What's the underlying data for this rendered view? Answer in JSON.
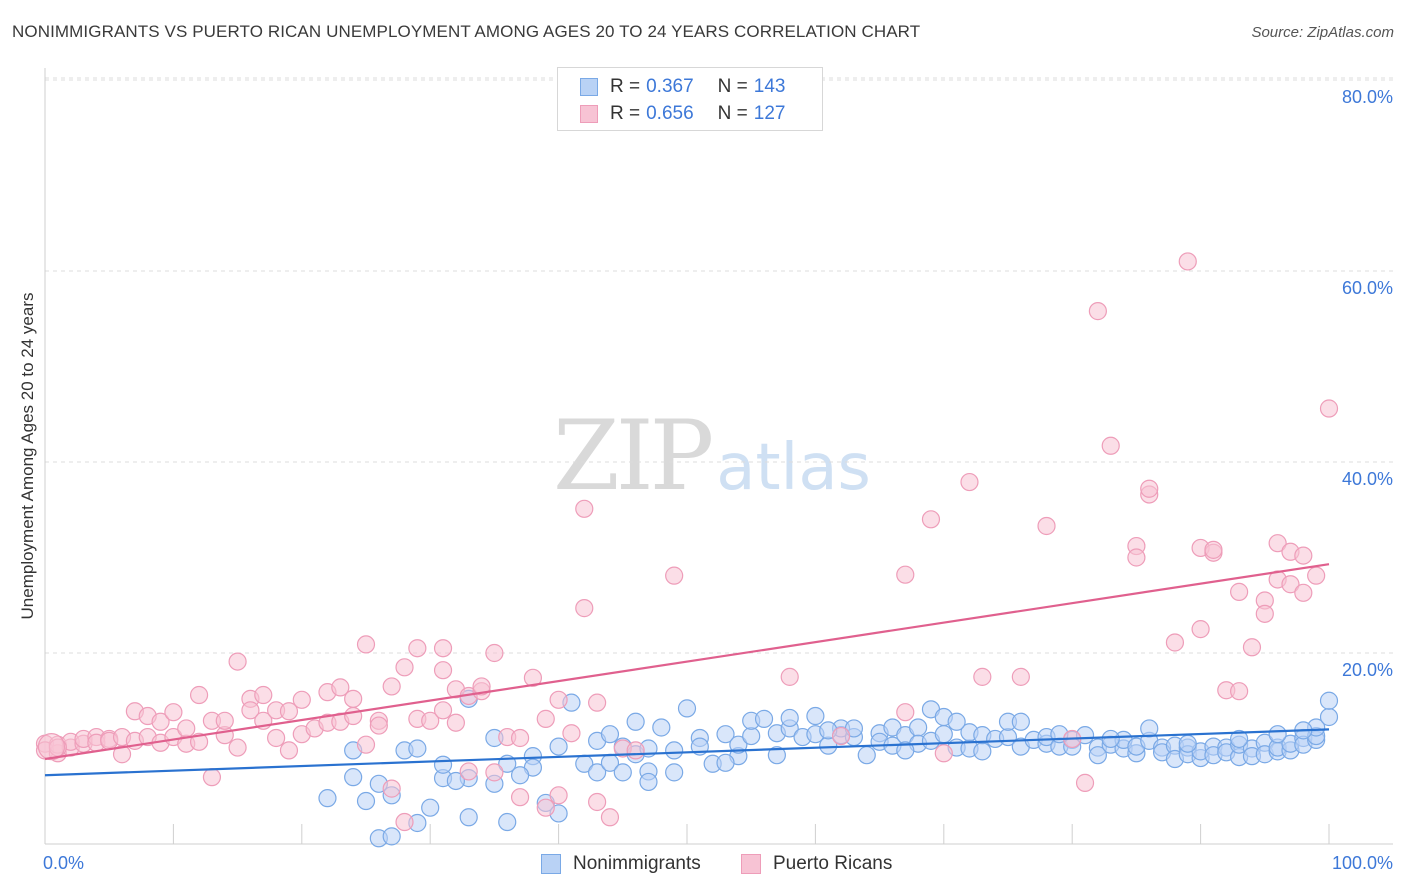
{
  "title": "NONIMMIGRANTS VS PUERTO RICAN UNEMPLOYMENT AMONG AGES 20 TO 24 YEARS CORRELATION CHART",
  "source": "Source: ZipAtlas.com",
  "watermark": {
    "zip": "ZIP",
    "atlas": "atlas"
  },
  "legend": {
    "r_label": "R =",
    "n_label": "N =",
    "rows": [
      {
        "name": "Nonimmigrants",
        "r": "0.367",
        "n": "143"
      },
      {
        "name": "Puerto Ricans",
        "r": "0.656",
        "n": "127"
      }
    ]
  },
  "colors": {
    "blue_fill": "#b9d2f5",
    "blue_stroke": "#7aa9e6",
    "blue_line": "#2a72d0",
    "pink_fill": "#f7c3d4",
    "pink_stroke": "#ee9db9",
    "pink_line": "#e0608e",
    "tick_label": "#3d78d8",
    "grid": "#dcdcdc"
  },
  "chart_data": {
    "type": "scatter",
    "title": "NONIMMIGRANTS VS PUERTO RICAN UNEMPLOYMENT AMONG AGES 20 TO 24 YEARS CORRELATION CHART",
    "xlabel": "",
    "ylabel": "Unemployment Among Ages 20 to 24 years",
    "xlim": [
      0,
      100
    ],
    "ylim": [
      0,
      80
    ],
    "x_tick_labels": [
      "0.0%",
      "100.0%"
    ],
    "y_ticks": [
      20,
      40,
      60,
      80
    ],
    "y_tick_labels": [
      "20.0%",
      "40.0%",
      "60.0%",
      "80.0%"
    ],
    "grid": "horizontal dashed",
    "legend_position": "top-center",
    "series": [
      {
        "name": "Nonimmigrants",
        "color": "#b9d2f5",
        "trend": {
          "x": [
            0,
            100
          ],
          "y": [
            7.2,
            12.0
          ]
        },
        "points": [
          [
            22,
            4.8
          ],
          [
            24,
            9.8
          ],
          [
            24,
            7.0
          ],
          [
            25,
            4.5
          ],
          [
            26,
            6.3
          ],
          [
            26,
            0.6
          ],
          [
            27,
            0.8
          ],
          [
            28,
            9.8
          ],
          [
            29,
            2.2
          ],
          [
            30,
            3.8
          ],
          [
            31,
            6.9
          ],
          [
            33,
            2.8
          ],
          [
            33,
            6.9
          ],
          [
            33,
            15.2
          ],
          [
            35,
            6.3
          ],
          [
            36,
            8.4
          ],
          [
            36,
            2.3
          ],
          [
            38,
            9.2
          ],
          [
            38,
            8.0
          ],
          [
            39,
            4.3
          ],
          [
            40,
            3.2
          ],
          [
            40,
            10.2
          ],
          [
            41,
            14.8
          ],
          [
            42,
            8.4
          ],
          [
            43,
            10.8
          ],
          [
            43,
            7.5
          ],
          [
            44,
            11.5
          ],
          [
            44,
            8.5
          ],
          [
            45,
            10.2
          ],
          [
            46,
            9.4
          ],
          [
            46,
            12.8
          ],
          [
            47,
            10.0
          ],
          [
            47,
            7.6
          ],
          [
            48,
            12.2
          ],
          [
            49,
            9.8
          ],
          [
            49,
            7.5
          ],
          [
            50,
            14.2
          ],
          [
            51,
            11.1
          ],
          [
            51,
            10.2
          ],
          [
            52,
            8.4
          ],
          [
            53,
            11.5
          ],
          [
            54,
            9.2
          ],
          [
            54,
            10.4
          ],
          [
            55,
            11.3
          ],
          [
            55,
            12.9
          ],
          [
            56,
            13.1
          ],
          [
            57,
            11.6
          ],
          [
            58,
            12.1
          ],
          [
            58,
            13.2
          ],
          [
            59,
            11.2
          ],
          [
            60,
            11.5
          ],
          [
            60,
            13.4
          ],
          [
            61,
            10.3
          ],
          [
            62,
            11.4
          ],
          [
            62,
            12.1
          ],
          [
            63,
            11.2
          ],
          [
            63,
            12.1
          ],
          [
            64,
            9.3
          ],
          [
            65,
            11.6
          ],
          [
            65,
            10.7
          ],
          [
            66,
            12.2
          ],
          [
            66,
            10.3
          ],
          [
            67,
            11.4
          ],
          [
            68,
            12.2
          ],
          [
            68,
            10.5
          ],
          [
            69,
            10.8
          ],
          [
            69,
            14.1
          ],
          [
            70,
            11.5
          ],
          [
            70,
            13.3
          ],
          [
            71,
            10.1
          ],
          [
            72,
            10.0
          ],
          [
            72,
            11.7
          ],
          [
            73,
            9.7
          ],
          [
            73,
            11.4
          ],
          [
            74,
            11.0
          ],
          [
            75,
            11.2
          ],
          [
            75,
            12.8
          ],
          [
            76,
            10.2
          ],
          [
            76,
            12.8
          ],
          [
            77,
            10.9
          ],
          [
            78,
            10.5
          ],
          [
            78,
            11.2
          ],
          [
            79,
            10.2
          ],
          [
            80,
            10.9
          ],
          [
            80,
            10.2
          ],
          [
            81,
            11.4
          ],
          [
            82,
            10.1
          ],
          [
            82,
            9.3
          ],
          [
            83,
            10.4
          ],
          [
            84,
            10.0
          ],
          [
            84,
            10.9
          ],
          [
            85,
            9.5
          ],
          [
            85,
            10.2
          ],
          [
            86,
            10.8
          ],
          [
            86,
            12.1
          ],
          [
            87,
            10.1
          ],
          [
            87,
            9.6
          ],
          [
            88,
            10.3
          ],
          [
            88,
            8.9
          ],
          [
            89,
            10.1
          ],
          [
            89,
            9.4
          ],
          [
            90,
            9.0
          ],
          [
            90,
            9.7
          ],
          [
            91,
            10.2
          ],
          [
            91,
            9.3
          ],
          [
            92,
            10.1
          ],
          [
            92,
            9.6
          ],
          [
            93,
            9.1
          ],
          [
            93,
            10.4
          ],
          [
            94,
            10.0
          ],
          [
            94,
            9.2
          ],
          [
            95,
            10.6
          ],
          [
            95,
            9.4
          ],
          [
            96,
            9.7
          ],
          [
            96,
            10.1
          ],
          [
            97,
            9.8
          ],
          [
            97,
            10.5
          ],
          [
            98,
            11.1
          ],
          [
            98,
            10.4
          ],
          [
            99,
            10.9
          ],
          [
            99,
            11.3
          ],
          [
            99,
            12.2
          ],
          [
            100,
            13.3
          ],
          [
            100,
            15.0
          ],
          [
            47,
            6.5
          ],
          [
            37,
            7.2
          ],
          [
            32,
            6.6
          ],
          [
            31,
            8.3
          ],
          [
            27,
            5.1
          ],
          [
            29,
            10.0
          ],
          [
            35,
            11.1
          ],
          [
            45,
            7.5
          ],
          [
            53,
            8.5
          ],
          [
            57,
            9.3
          ],
          [
            61,
            11.9
          ],
          [
            67,
            9.8
          ],
          [
            71,
            12.8
          ],
          [
            79,
            11.5
          ],
          [
            83,
            11.0
          ],
          [
            89,
            10.5
          ],
          [
            93,
            11.0
          ],
          [
            96,
            11.5
          ],
          [
            98,
            11.9
          ]
        ]
      },
      {
        "name": "Puerto Ricans",
        "color": "#f7c3d4",
        "trend": {
          "x": [
            0,
            100
          ],
          "y": [
            8.9,
            29.3
          ]
        },
        "points": [
          [
            0,
            10.5
          ],
          [
            0,
            9.8
          ],
          [
            1,
            9.5
          ],
          [
            1,
            10.4
          ],
          [
            2,
            10.1
          ],
          [
            2,
            10.7
          ],
          [
            3,
            10.5
          ],
          [
            3,
            11.0
          ],
          [
            4,
            11.2
          ],
          [
            4,
            10.6
          ],
          [
            5,
            11.0
          ],
          [
            5,
            10.8
          ],
          [
            6,
            11.2
          ],
          [
            6,
            9.4
          ],
          [
            7,
            10.8
          ],
          [
            7,
            13.9
          ],
          [
            8,
            11.2
          ],
          [
            8,
            13.4
          ],
          [
            9,
            10.6
          ],
          [
            9,
            12.8
          ],
          [
            10,
            13.8
          ],
          [
            10,
            11.2
          ],
          [
            11,
            10.5
          ],
          [
            11,
            12.1
          ],
          [
            12,
            15.6
          ],
          [
            12,
            10.7
          ],
          [
            13,
            12.9
          ],
          [
            13,
            7.0
          ],
          [
            14,
            11.4
          ],
          [
            14,
            12.9
          ],
          [
            15,
            10.1
          ],
          [
            15,
            19.1
          ],
          [
            16,
            15.2
          ],
          [
            16,
            14.0
          ],
          [
            17,
            15.6
          ],
          [
            17,
            12.9
          ],
          [
            18,
            11.1
          ],
          [
            18,
            14.0
          ],
          [
            19,
            9.8
          ],
          [
            19,
            13.9
          ],
          [
            20,
            15.1
          ],
          [
            20,
            11.5
          ],
          [
            21,
            12.1
          ],
          [
            22,
            15.9
          ],
          [
            22,
            12.7
          ],
          [
            23,
            12.8
          ],
          [
            23,
            16.4
          ],
          [
            24,
            13.4
          ],
          [
            24,
            15.2
          ],
          [
            25,
            10.4
          ],
          [
            25,
            20.9
          ],
          [
            26,
            12.9
          ],
          [
            26,
            12.4
          ],
          [
            27,
            16.5
          ],
          [
            27,
            5.8
          ],
          [
            28,
            18.5
          ],
          [
            28,
            2.3
          ],
          [
            29,
            13.1
          ],
          [
            29,
            20.5
          ],
          [
            30,
            12.9
          ],
          [
            31,
            20.5
          ],
          [
            31,
            18.2
          ],
          [
            31,
            14.0
          ],
          [
            32,
            16.2
          ],
          [
            32,
            12.7
          ],
          [
            33,
            15.5
          ],
          [
            33,
            7.6
          ],
          [
            34,
            16.0
          ],
          [
            34,
            16.5
          ],
          [
            35,
            20.0
          ],
          [
            35,
            7.5
          ],
          [
            36,
            11.2
          ],
          [
            37,
            4.9
          ],
          [
            37,
            11.1
          ],
          [
            38,
            17.4
          ],
          [
            39,
            13.1
          ],
          [
            39,
            3.8
          ],
          [
            40,
            5.1
          ],
          [
            40,
            15.1
          ],
          [
            41,
            11.6
          ],
          [
            42,
            35.1
          ],
          [
            42,
            24.7
          ],
          [
            43,
            14.8
          ],
          [
            43,
            4.4
          ],
          [
            44,
            2.8
          ],
          [
            45,
            10.0
          ],
          [
            46,
            9.8
          ],
          [
            49,
            28.1
          ],
          [
            58,
            17.5
          ],
          [
            62,
            11.3
          ],
          [
            67,
            13.8
          ],
          [
            67,
            28.2
          ],
          [
            69,
            34.0
          ],
          [
            70,
            9.5
          ],
          [
            72,
            37.9
          ],
          [
            73,
            17.5
          ],
          [
            76,
            17.5
          ],
          [
            78,
            33.3
          ],
          [
            80,
            11.0
          ],
          [
            81,
            6.4
          ],
          [
            82,
            55.8
          ],
          [
            83,
            41.7
          ],
          [
            85,
            31.2
          ],
          [
            85,
            30.0
          ],
          [
            86,
            36.6
          ],
          [
            86,
            37.2
          ],
          [
            88,
            21.1
          ],
          [
            89,
            61.0
          ],
          [
            90,
            22.5
          ],
          [
            90,
            31.0
          ],
          [
            91,
            30.5
          ],
          [
            91,
            30.8
          ],
          [
            92,
            16.1
          ],
          [
            93,
            26.4
          ],
          [
            93,
            16.0
          ],
          [
            94,
            20.6
          ],
          [
            95,
            25.5
          ],
          [
            95,
            24.1
          ],
          [
            96,
            31.5
          ],
          [
            96,
            27.7
          ],
          [
            97,
            30.6
          ],
          [
            97,
            27.2
          ],
          [
            98,
            30.2
          ],
          [
            98,
            26.3
          ],
          [
            99,
            28.1
          ],
          [
            100,
            45.6
          ],
          [
            1,
            10.1
          ]
        ]
      }
    ]
  }
}
